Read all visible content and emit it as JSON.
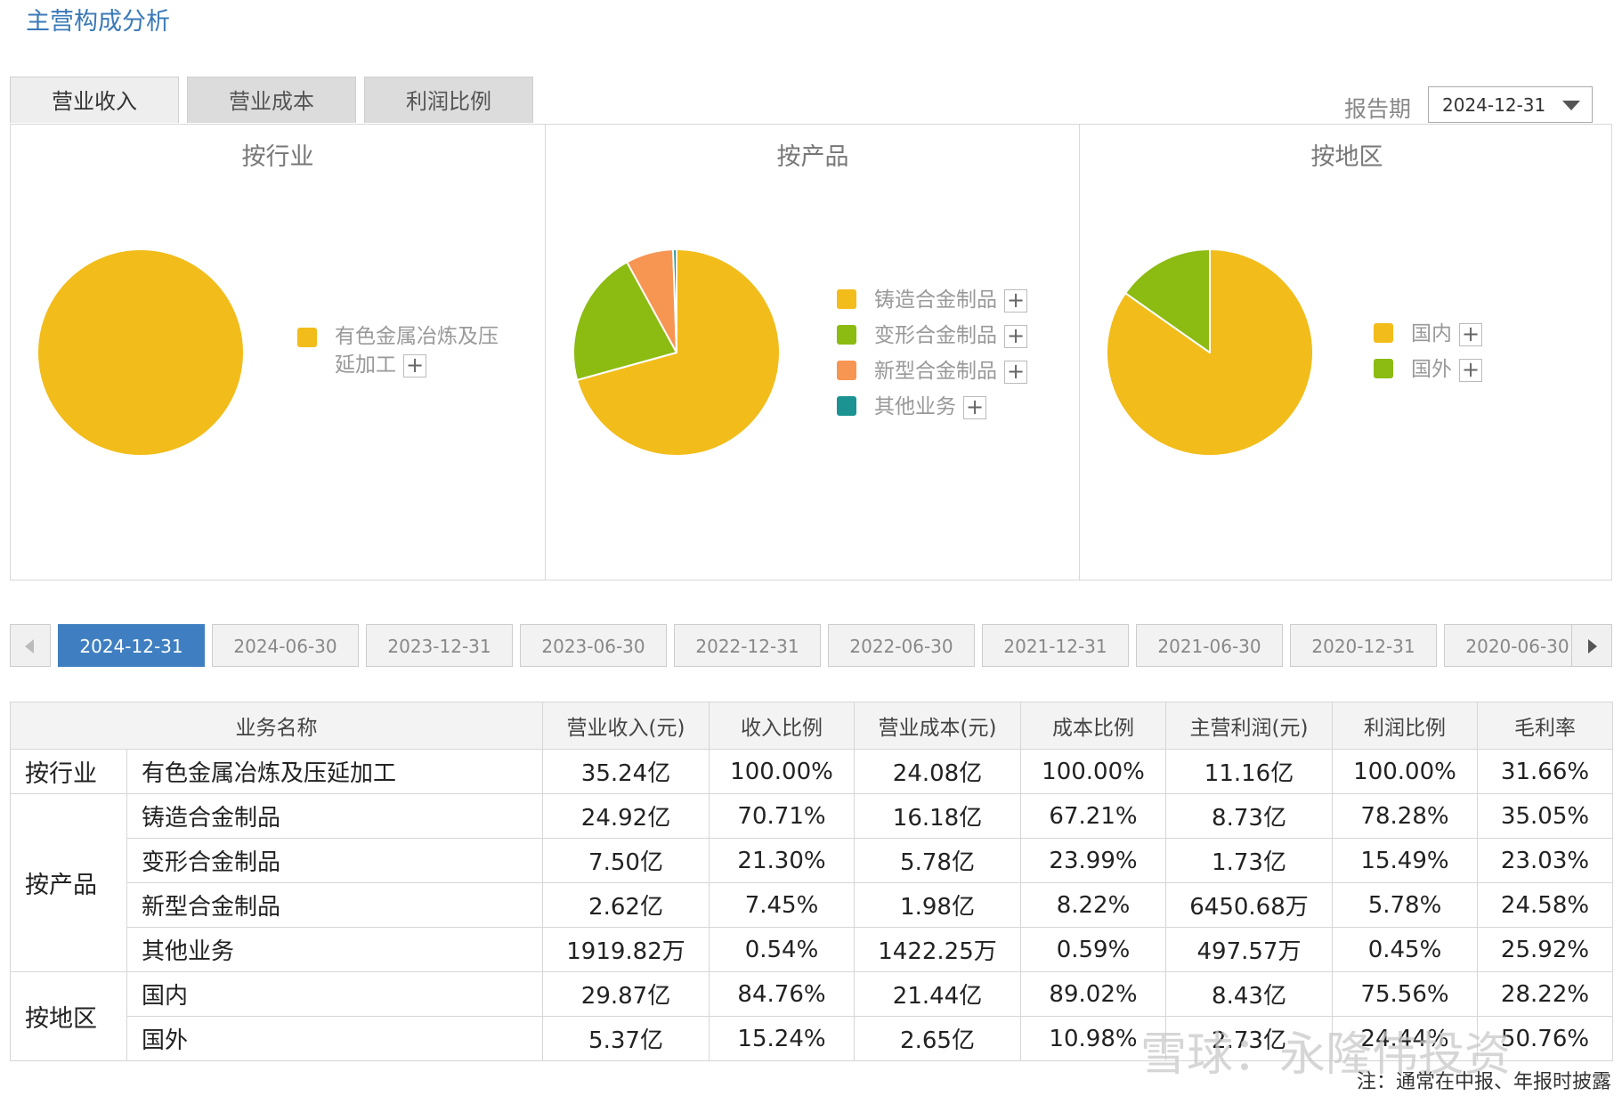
{
  "page_title": "主营构成分析",
  "tabs": [
    {
      "label": "营业收入",
      "active": true
    },
    {
      "label": "营业成本",
      "active": false
    },
    {
      "label": "利润比例",
      "active": false
    }
  ],
  "report_period": {
    "label": "报告期",
    "value": "2024-12-31"
  },
  "colors": {
    "yellow": "#f2bc1a",
    "green": "#8cbb12",
    "orange": "#f79553",
    "teal": "#1c9393"
  },
  "panels": [
    {
      "title": "按行业",
      "slices": [
        {
          "label": "有色金属冶炼及压延加工",
          "share": 100.0,
          "color": "#f2bc1a"
        }
      ]
    },
    {
      "title": "按产品",
      "slices": [
        {
          "label": "铸造合金制品",
          "share": 70.71,
          "color": "#f2bc1a"
        },
        {
          "label": "变形合金制品",
          "share": 21.3,
          "color": "#8cbb12"
        },
        {
          "label": "新型合金制品",
          "share": 7.45,
          "color": "#f79553"
        },
        {
          "label": "其他业务",
          "share": 0.54,
          "color": "#1c9393"
        }
      ]
    },
    {
      "title": "按地区",
      "slices": [
        {
          "label": "国内",
          "share": 84.76,
          "color": "#f2bc1a"
        },
        {
          "label": "国外",
          "share": 15.24,
          "color": "#8cbb12"
        }
      ]
    }
  ],
  "dates": [
    "2024-12-31",
    "2024-06-30",
    "2023-12-31",
    "2023-06-30",
    "2022-12-31",
    "2022-06-30",
    "2021-12-31",
    "2021-06-30",
    "2020-12-31",
    "2020-06-30"
  ],
  "active_date": "2024-12-31",
  "table": {
    "headers": [
      "业务名称",
      "营业收入(元)",
      "收入比例",
      "营业成本(元)",
      "成本比例",
      "主营利润(元)",
      "利润比例",
      "毛利率"
    ],
    "groups": [
      {
        "group": "按行业",
        "rows": [
          [
            "有色金属冶炼及压延加工",
            "35.24亿",
            "100.00%",
            "24.08亿",
            "100.00%",
            "11.16亿",
            "100.00%",
            "31.66%"
          ]
        ]
      },
      {
        "group": "按产品",
        "rows": [
          [
            "铸造合金制品",
            "24.92亿",
            "70.71%",
            "16.18亿",
            "67.21%",
            "8.73亿",
            "78.28%",
            "35.05%"
          ],
          [
            "变形合金制品",
            "7.50亿",
            "21.30%",
            "5.78亿",
            "23.99%",
            "1.73亿",
            "15.49%",
            "23.03%"
          ],
          [
            "新型合金制品",
            "2.62亿",
            "7.45%",
            "1.98亿",
            "8.22%",
            "6450.68万",
            "5.78%",
            "24.58%"
          ],
          [
            "其他业务",
            "1919.82万",
            "0.54%",
            "1422.25万",
            "0.59%",
            "497.57万",
            "0.45%",
            "25.92%"
          ]
        ]
      },
      {
        "group": "按地区",
        "rows": [
          [
            "国内",
            "29.87亿",
            "84.76%",
            "21.44亿",
            "89.02%",
            "8.43亿",
            "75.56%",
            "28.22%"
          ],
          [
            "国外",
            "5.37亿",
            "15.24%",
            "2.65亿",
            "10.98%",
            "2.73亿",
            "24.44%",
            "50.76%"
          ]
        ]
      }
    ]
  },
  "watermark": "雪球：永隆伟投资",
  "note": "注：通常在中报、年报时披露"
}
